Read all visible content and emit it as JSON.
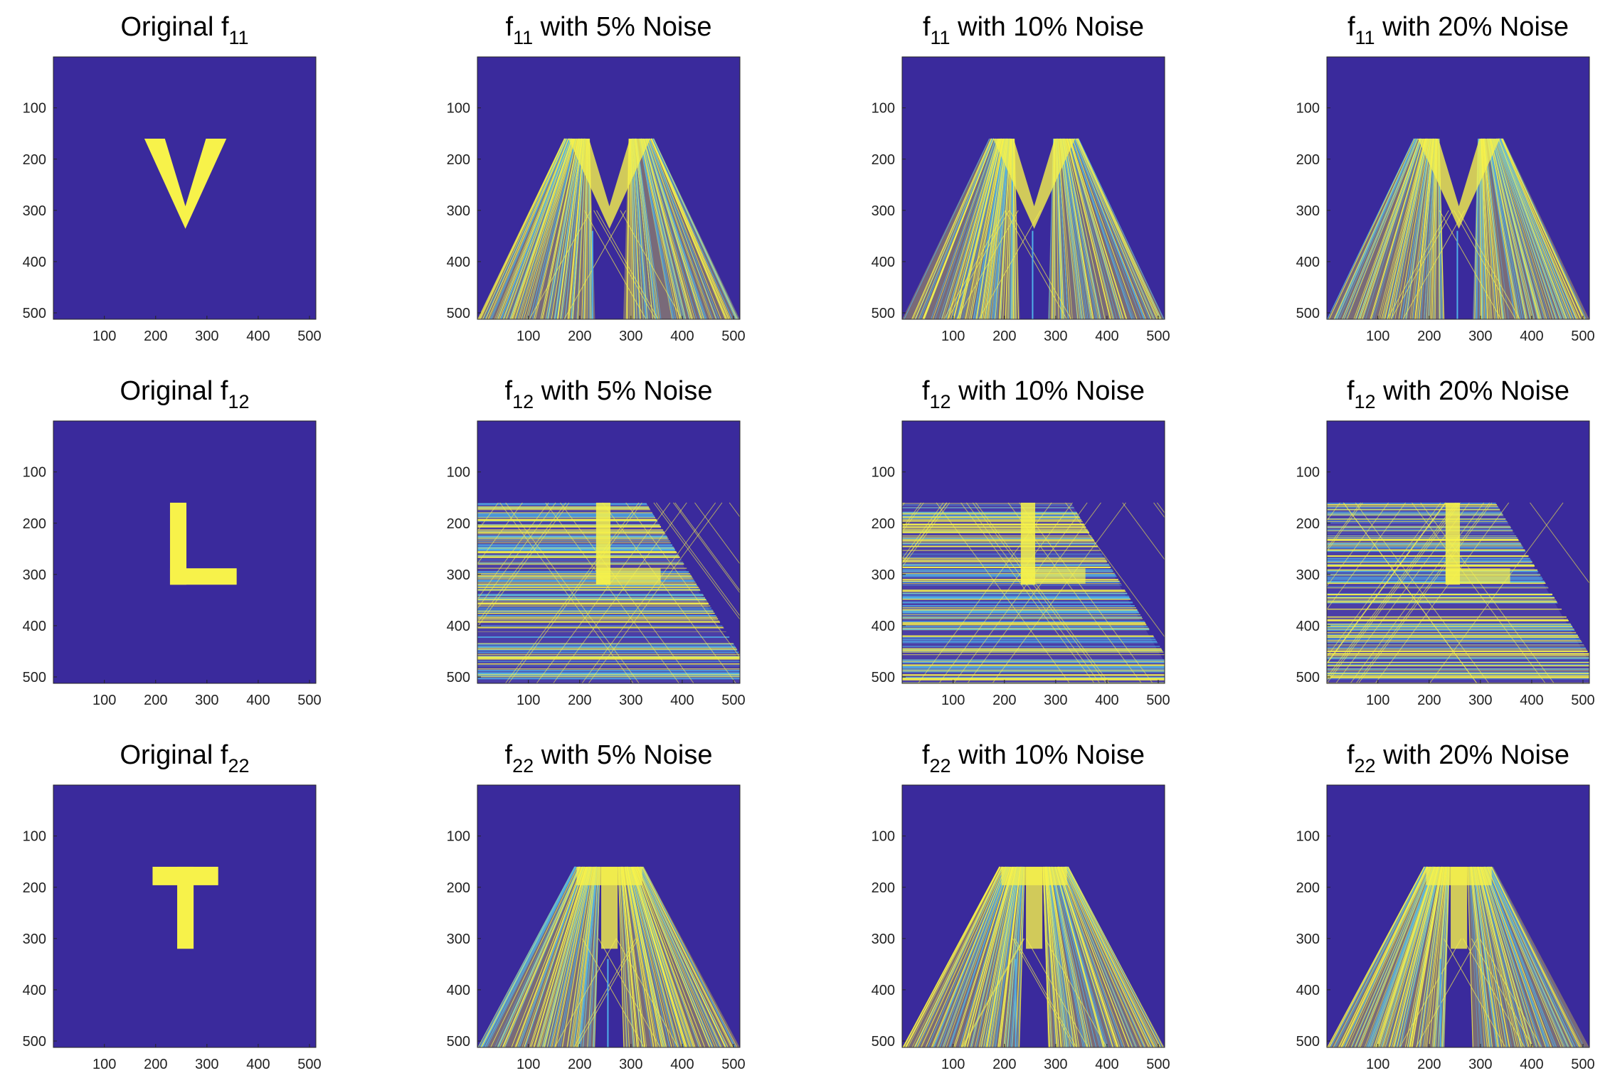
{
  "chart_data": {
    "type": "heatmap",
    "colormap": {
      "background": "#3a2a9c",
      "foreground": "#f7f24a",
      "noise_mid": "#4fb0e8"
    },
    "layout": "3x4",
    "axes_ranges": {
      "x": [
        1,
        512
      ],
      "y": [
        1,
        512
      ],
      "y_reversed": true
    },
    "x_ticks": [
      "100",
      "200",
      "300",
      "400",
      "500"
    ],
    "y_ticks": [
      "100",
      "200",
      "300",
      "400",
      "500"
    ],
    "panels": [
      {
        "title_main": "Original f",
        "title_sub": "11",
        "title_rest": "",
        "shape": "V",
        "noise_pct": 0
      },
      {
        "title_main": "f",
        "title_sub": "11",
        "title_rest": " with 5% Noise",
        "shape": "V",
        "noise_pct": 5
      },
      {
        "title_main": "f",
        "title_sub": "11",
        "title_rest": " with 10% Noise",
        "shape": "V",
        "noise_pct": 10
      },
      {
        "title_main": "f",
        "title_sub": "11",
        "title_rest": " with 20% Noise",
        "shape": "V",
        "noise_pct": 20
      },
      {
        "title_main": "Original f",
        "title_sub": "12",
        "title_rest": "",
        "shape": "L",
        "noise_pct": 0
      },
      {
        "title_main": "f",
        "title_sub": "12",
        "title_rest": " with 5% Noise",
        "shape": "L",
        "noise_pct": 5
      },
      {
        "title_main": "f",
        "title_sub": "12",
        "title_rest": " with 10% Noise",
        "shape": "L",
        "noise_pct": 10
      },
      {
        "title_main": "f",
        "title_sub": "12",
        "title_rest": " with 20% Noise",
        "shape": "L",
        "noise_pct": 20
      },
      {
        "title_main": "Original f",
        "title_sub": "22",
        "title_rest": "",
        "shape": "T",
        "noise_pct": 0
      },
      {
        "title_main": "f",
        "title_sub": "22",
        "title_rest": " with 5% Noise",
        "shape": "T",
        "noise_pct": 5
      },
      {
        "title_main": "f",
        "title_sub": "22",
        "title_rest": " with 10% Noise",
        "shape": "T",
        "noise_pct": 10
      },
      {
        "title_main": "f",
        "title_sub": "22",
        "title_rest": " with 20% Noise",
        "shape": "T",
        "noise_pct": 20
      }
    ]
  }
}
